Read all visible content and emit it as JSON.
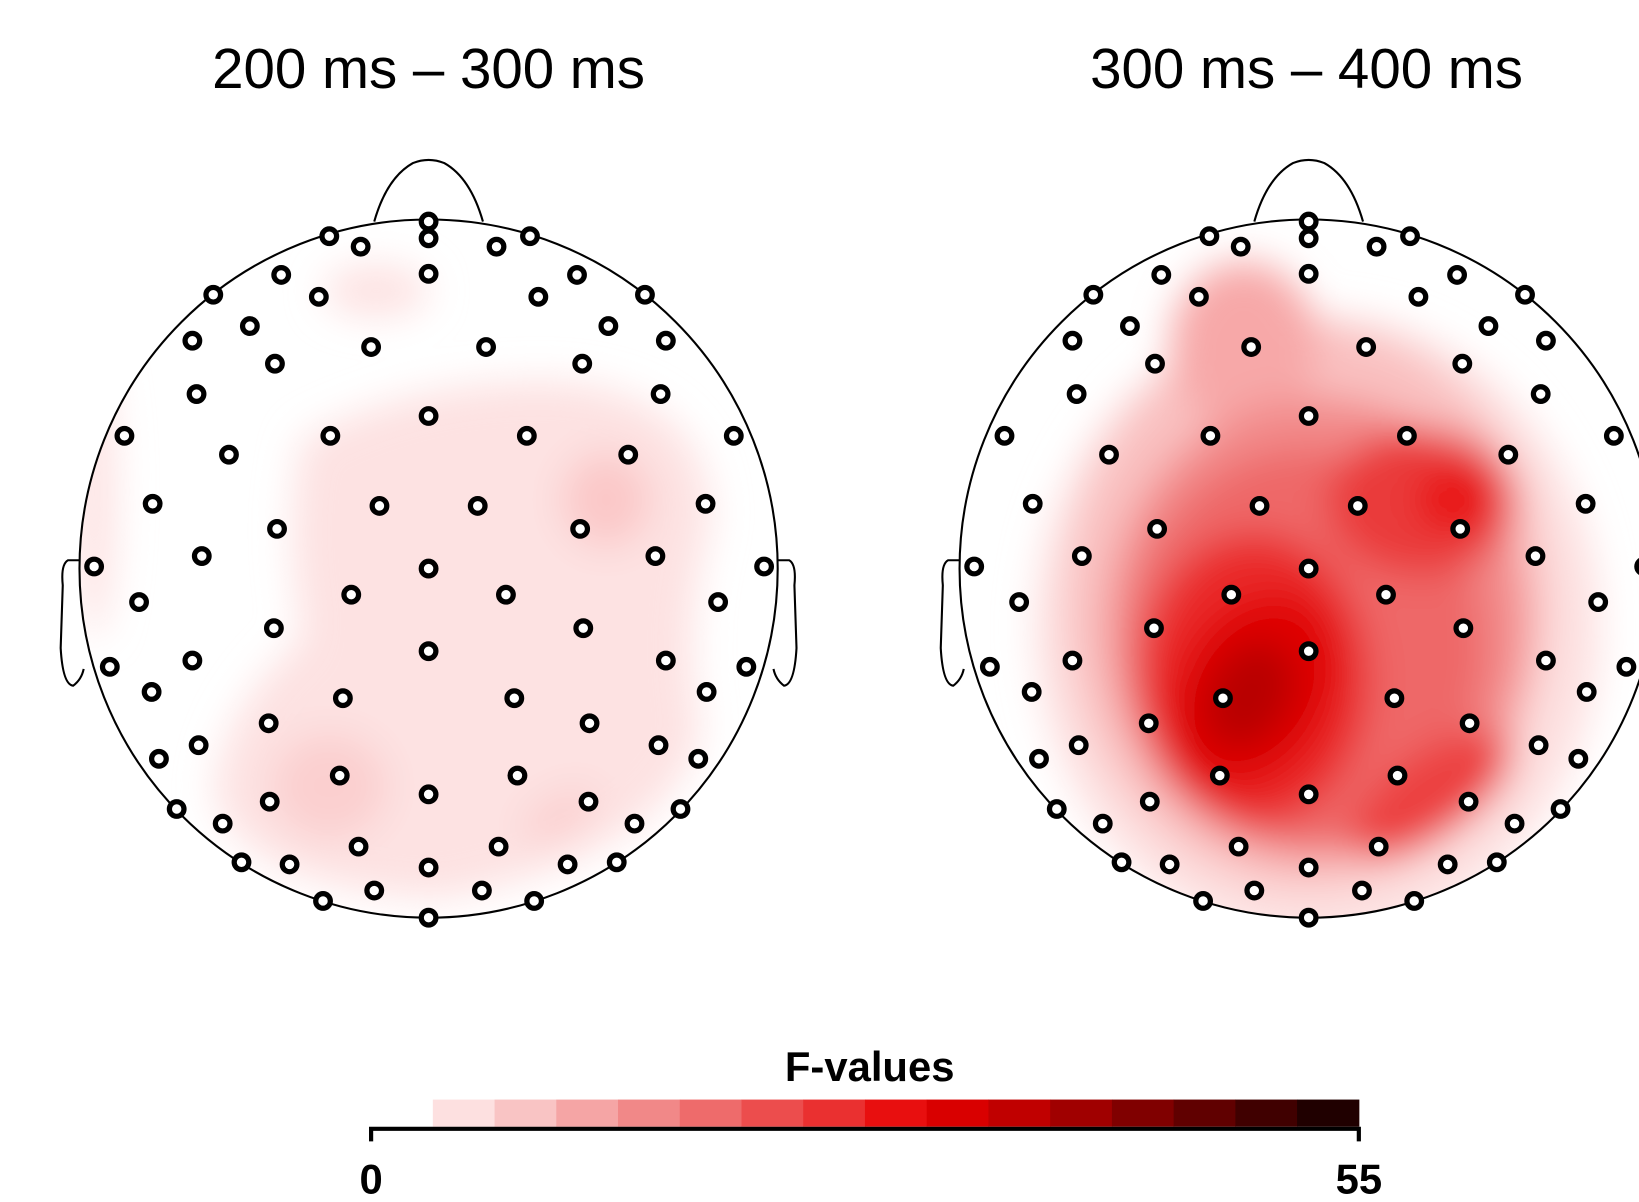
{
  "panels": [
    {
      "title": "200 ms – 300 ms"
    },
    {
      "title": "300 ms – 400 ms"
    }
  ],
  "colorbar": {
    "label": "F-values",
    "min": 0,
    "max": 55
  }
}
